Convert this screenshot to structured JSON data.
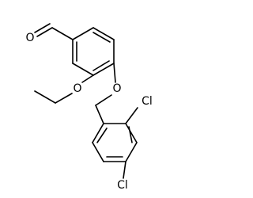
{
  "atoms": [
    {
      "label": "O"
    },
    {
      "label": "O"
    },
    {
      "label": "O"
    },
    {
      "label": "Cl"
    },
    {
      "label": "Cl"
    }
  ]
}
